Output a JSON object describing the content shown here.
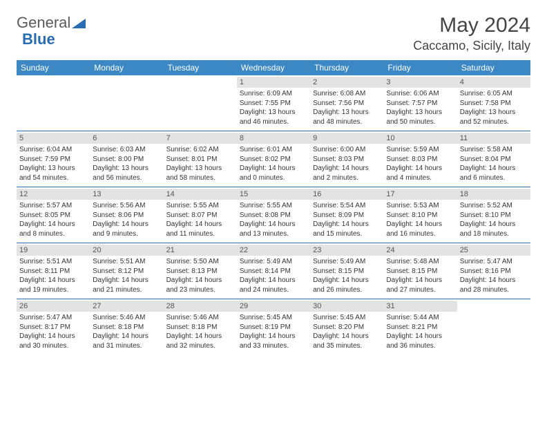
{
  "logo": {
    "text1": "General",
    "text2": "Blue"
  },
  "title": "May 2024",
  "location": "Caccamo, Sicily, Italy",
  "colors": {
    "header_bg": "#3b88c4",
    "daynum_bg": "#e3e3e3",
    "divider": "#2a6cb0"
  },
  "day_headers": [
    "Sunday",
    "Monday",
    "Tuesday",
    "Wednesday",
    "Thursday",
    "Friday",
    "Saturday"
  ],
  "weeks": [
    [
      null,
      null,
      null,
      {
        "n": "1",
        "sr": "Sunrise: 6:09 AM",
        "ss": "Sunset: 7:55 PM",
        "d1": "Daylight: 13 hours",
        "d2": "and 46 minutes."
      },
      {
        "n": "2",
        "sr": "Sunrise: 6:08 AM",
        "ss": "Sunset: 7:56 PM",
        "d1": "Daylight: 13 hours",
        "d2": "and 48 minutes."
      },
      {
        "n": "3",
        "sr": "Sunrise: 6:06 AM",
        "ss": "Sunset: 7:57 PM",
        "d1": "Daylight: 13 hours",
        "d2": "and 50 minutes."
      },
      {
        "n": "4",
        "sr": "Sunrise: 6:05 AM",
        "ss": "Sunset: 7:58 PM",
        "d1": "Daylight: 13 hours",
        "d2": "and 52 minutes."
      }
    ],
    [
      {
        "n": "5",
        "sr": "Sunrise: 6:04 AM",
        "ss": "Sunset: 7:59 PM",
        "d1": "Daylight: 13 hours",
        "d2": "and 54 minutes."
      },
      {
        "n": "6",
        "sr": "Sunrise: 6:03 AM",
        "ss": "Sunset: 8:00 PM",
        "d1": "Daylight: 13 hours",
        "d2": "and 56 minutes."
      },
      {
        "n": "7",
        "sr": "Sunrise: 6:02 AM",
        "ss": "Sunset: 8:01 PM",
        "d1": "Daylight: 13 hours",
        "d2": "and 58 minutes."
      },
      {
        "n": "8",
        "sr": "Sunrise: 6:01 AM",
        "ss": "Sunset: 8:02 PM",
        "d1": "Daylight: 14 hours",
        "d2": "and 0 minutes."
      },
      {
        "n": "9",
        "sr": "Sunrise: 6:00 AM",
        "ss": "Sunset: 8:03 PM",
        "d1": "Daylight: 14 hours",
        "d2": "and 2 minutes."
      },
      {
        "n": "10",
        "sr": "Sunrise: 5:59 AM",
        "ss": "Sunset: 8:03 PM",
        "d1": "Daylight: 14 hours",
        "d2": "and 4 minutes."
      },
      {
        "n": "11",
        "sr": "Sunrise: 5:58 AM",
        "ss": "Sunset: 8:04 PM",
        "d1": "Daylight: 14 hours",
        "d2": "and 6 minutes."
      }
    ],
    [
      {
        "n": "12",
        "sr": "Sunrise: 5:57 AM",
        "ss": "Sunset: 8:05 PM",
        "d1": "Daylight: 14 hours",
        "d2": "and 8 minutes."
      },
      {
        "n": "13",
        "sr": "Sunrise: 5:56 AM",
        "ss": "Sunset: 8:06 PM",
        "d1": "Daylight: 14 hours",
        "d2": "and 9 minutes."
      },
      {
        "n": "14",
        "sr": "Sunrise: 5:55 AM",
        "ss": "Sunset: 8:07 PM",
        "d1": "Daylight: 14 hours",
        "d2": "and 11 minutes."
      },
      {
        "n": "15",
        "sr": "Sunrise: 5:55 AM",
        "ss": "Sunset: 8:08 PM",
        "d1": "Daylight: 14 hours",
        "d2": "and 13 minutes."
      },
      {
        "n": "16",
        "sr": "Sunrise: 5:54 AM",
        "ss": "Sunset: 8:09 PM",
        "d1": "Daylight: 14 hours",
        "d2": "and 15 minutes."
      },
      {
        "n": "17",
        "sr": "Sunrise: 5:53 AM",
        "ss": "Sunset: 8:10 PM",
        "d1": "Daylight: 14 hours",
        "d2": "and 16 minutes."
      },
      {
        "n": "18",
        "sr": "Sunrise: 5:52 AM",
        "ss": "Sunset: 8:10 PM",
        "d1": "Daylight: 14 hours",
        "d2": "and 18 minutes."
      }
    ],
    [
      {
        "n": "19",
        "sr": "Sunrise: 5:51 AM",
        "ss": "Sunset: 8:11 PM",
        "d1": "Daylight: 14 hours",
        "d2": "and 19 minutes."
      },
      {
        "n": "20",
        "sr": "Sunrise: 5:51 AM",
        "ss": "Sunset: 8:12 PM",
        "d1": "Daylight: 14 hours",
        "d2": "and 21 minutes."
      },
      {
        "n": "21",
        "sr": "Sunrise: 5:50 AM",
        "ss": "Sunset: 8:13 PM",
        "d1": "Daylight: 14 hours",
        "d2": "and 23 minutes."
      },
      {
        "n": "22",
        "sr": "Sunrise: 5:49 AM",
        "ss": "Sunset: 8:14 PM",
        "d1": "Daylight: 14 hours",
        "d2": "and 24 minutes."
      },
      {
        "n": "23",
        "sr": "Sunrise: 5:49 AM",
        "ss": "Sunset: 8:15 PM",
        "d1": "Daylight: 14 hours",
        "d2": "and 26 minutes."
      },
      {
        "n": "24",
        "sr": "Sunrise: 5:48 AM",
        "ss": "Sunset: 8:15 PM",
        "d1": "Daylight: 14 hours",
        "d2": "and 27 minutes."
      },
      {
        "n": "25",
        "sr": "Sunrise: 5:47 AM",
        "ss": "Sunset: 8:16 PM",
        "d1": "Daylight: 14 hours",
        "d2": "and 28 minutes."
      }
    ],
    [
      {
        "n": "26",
        "sr": "Sunrise: 5:47 AM",
        "ss": "Sunset: 8:17 PM",
        "d1": "Daylight: 14 hours",
        "d2": "and 30 minutes."
      },
      {
        "n": "27",
        "sr": "Sunrise: 5:46 AM",
        "ss": "Sunset: 8:18 PM",
        "d1": "Daylight: 14 hours",
        "d2": "and 31 minutes."
      },
      {
        "n": "28",
        "sr": "Sunrise: 5:46 AM",
        "ss": "Sunset: 8:18 PM",
        "d1": "Daylight: 14 hours",
        "d2": "and 32 minutes."
      },
      {
        "n": "29",
        "sr": "Sunrise: 5:45 AM",
        "ss": "Sunset: 8:19 PM",
        "d1": "Daylight: 14 hours",
        "d2": "and 33 minutes."
      },
      {
        "n": "30",
        "sr": "Sunrise: 5:45 AM",
        "ss": "Sunset: 8:20 PM",
        "d1": "Daylight: 14 hours",
        "d2": "and 35 minutes."
      },
      {
        "n": "31",
        "sr": "Sunrise: 5:44 AM",
        "ss": "Sunset: 8:21 PM",
        "d1": "Daylight: 14 hours",
        "d2": "and 36 minutes."
      },
      null
    ]
  ]
}
